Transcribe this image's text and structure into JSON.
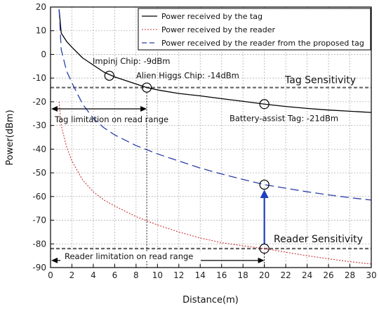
{
  "chart_data": {
    "type": "line",
    "xlabel": "Distance(m)",
    "ylabel": "Power(dBm)",
    "xlim": [
      0,
      30
    ],
    "ylim": [
      -90,
      20
    ],
    "x_ticks": [
      0,
      2,
      4,
      6,
      8,
      10,
      12,
      14,
      16,
      18,
      20,
      22,
      24,
      26,
      28,
      30
    ],
    "y_ticks": [
      20,
      10,
      0,
      -10,
      -20,
      -30,
      -40,
      -50,
      -60,
      -70,
      -80,
      -90
    ],
    "grid": true,
    "legend_position": "top-right",
    "series": [
      {
        "name": "Power received by the tag",
        "color": "#000000",
        "style": "solid",
        "x": [
          0.8,
          1,
          1.5,
          2,
          3,
          4,
          5,
          6,
          8,
          9,
          10,
          12,
          14,
          16,
          18,
          20,
          22,
          24,
          26,
          28,
          30
        ],
        "y": [
          19,
          9,
          5.5,
          3,
          -1.5,
          -4.5,
          -7.5,
          -9.5,
          -12.5,
          -14,
          -15,
          -16.5,
          -17.5,
          -18.7,
          -19.8,
          -21,
          -22,
          -22.8,
          -23.5,
          -24,
          -24.5
        ]
      },
      {
        "name": "Power received by the reader",
        "color": "#cc3333",
        "style": "dotted",
        "x": [
          0.8,
          1,
          1.5,
          2,
          3,
          4,
          5,
          6,
          8,
          10,
          12,
          14,
          16,
          18,
          20,
          22,
          24,
          26,
          28,
          30
        ],
        "y": [
          -20,
          -30,
          -39,
          -45,
          -53,
          -58,
          -61.5,
          -64,
          -68.5,
          -72,
          -75,
          -77.5,
          -79.5,
          -80.8,
          -82,
          -83.5,
          -85,
          -86.3,
          -87.5,
          -88.5
        ]
      },
      {
        "name": "Power received by the reader from the proposed tag",
        "color": "#2a3fa8",
        "style": "dashed",
        "x": [
          0.8,
          1,
          1.5,
          2,
          3,
          4,
          5,
          6,
          8,
          10,
          12,
          14,
          16,
          18,
          20,
          22,
          24,
          26,
          28,
          30
        ],
        "y": [
          19,
          2,
          -7,
          -12,
          -21,
          -27,
          -31,
          -34,
          -38.5,
          -42,
          -45,
          -48,
          -50.5,
          -52.8,
          -55,
          -56.5,
          -58,
          -59.3,
          -60.5,
          -61.5
        ]
      }
    ],
    "reference_lines": [
      {
        "label": "Tag Sensitivity",
        "y": -14
      },
      {
        "label": "Reader Sensitivity",
        "y": -82
      }
    ],
    "markers": [
      {
        "label": "Impinj Chip: -9dBm",
        "x": 5.5,
        "y": -9
      },
      {
        "label": "Alien Higgs Chip: -14dBm",
        "x": 9,
        "y": -14
      },
      {
        "label": "Battery-assist Tag: -21dBm",
        "x": 20,
        "y": -21
      },
      {
        "label": "",
        "x": 20,
        "y": -55
      },
      {
        "label": "",
        "x": 20,
        "y": -82
      }
    ],
    "range_annotations": [
      {
        "label": "Tag limitation on read range",
        "x_start": 0,
        "x_end": 9,
        "y": -23
      },
      {
        "label": "Reader limitation on read range",
        "x_start": 0,
        "x_end": 20,
        "y": -87
      }
    ],
    "arrow": {
      "x": 20,
      "y_from": -82,
      "y_to": -55
    }
  }
}
